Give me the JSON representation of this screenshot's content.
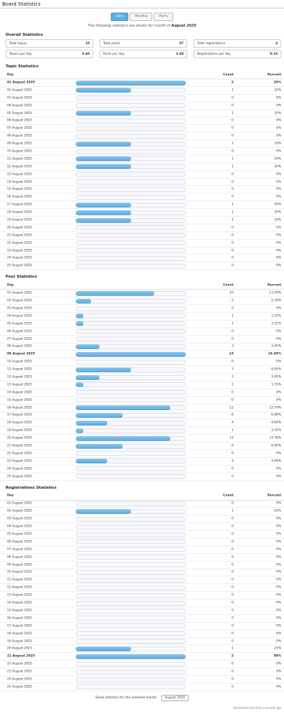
{
  "header": {
    "title": "Board Statistics"
  },
  "tabs": [
    "Daily",
    "Monthly",
    "Yearly"
  ],
  "intro": {
    "text": "The following statistics are shown for month of",
    "month": "August 2025"
  },
  "overall": {
    "title": "Overall Statistics",
    "items": [
      {
        "label": "Total topics",
        "value": 10
      },
      {
        "label": "Total posts",
        "value": 87
      },
      {
        "label": "Total registrations",
        "value": 4
      },
      {
        "label": "Topics per day",
        "value": "0.40"
      },
      {
        "label": "Posts per day",
        "value": "3.48"
      },
      {
        "label": "Registrations per day",
        "value": "0.16"
      }
    ]
  },
  "tables": [
    {
      "title": "Topic Statistics",
      "columns": [
        "Day",
        "Count",
        "Percent"
      ],
      "rows": [
        [
          "01 August 2025",
          2,
          "20%"
        ],
        [
          "02 August 2025",
          1,
          "10%"
        ],
        [
          "03 August 2025",
          0,
          "0%"
        ],
        [
          "04 August 2025",
          0,
          "0%"
        ],
        [
          "05 August 2025",
          1,
          "10%"
        ],
        [
          "06 August 2025",
          0,
          "0%"
        ],
        [
          "07 August 2025",
          0,
          "0%"
        ],
        [
          "08 August 2025",
          0,
          "0%"
        ],
        [
          "09 August 2025",
          1,
          "10%"
        ],
        [
          "10 August 2025",
          0,
          "0%"
        ],
        [
          "11 August 2025",
          1,
          "10%"
        ],
        [
          "12 August 2025",
          1,
          "10%"
        ],
        [
          "13 August 2025",
          0,
          "0%"
        ],
        [
          "14 August 2025",
          0,
          "0%"
        ],
        [
          "15 August 2025",
          0,
          "0%"
        ],
        [
          "16 August 2025",
          0,
          "0%"
        ],
        [
          "17 August 2025",
          1,
          "10%"
        ],
        [
          "18 August 2025",
          1,
          "10%"
        ],
        [
          "19 August 2025",
          1,
          "10%"
        ],
        [
          "20 August 2025",
          0,
          "0%"
        ],
        [
          "21 August 2025",
          0,
          "0%"
        ],
        [
          "22 August 2025",
          0,
          "0%"
        ],
        [
          "23 August 2025",
          0,
          "0%"
        ],
        [
          "24 August 2025",
          0,
          "0%"
        ],
        [
          "25 August 2025",
          0,
          "0%"
        ]
      ]
    },
    {
      "title": "Post Statistics",
      "columns": [
        "Day",
        "Count",
        "Percent"
      ],
      "rows": [
        [
          "01 August 2025",
          10,
          "11.49%"
        ],
        [
          "02 August 2025",
          2,
          "2.30%"
        ],
        [
          "03 August 2025",
          0,
          "0%"
        ],
        [
          "04 August 2025",
          1,
          "1.15%"
        ],
        [
          "05 August 2025",
          1,
          "1.15%"
        ],
        [
          "06 August 2025",
          0,
          "0%"
        ],
        [
          "07 August 2025",
          0,
          "0%"
        ],
        [
          "08 August 2025",
          3,
          "3.45%"
        ],
        [
          "09 August 2025",
          14,
          "16.09%"
        ],
        [
          "10 August 2025",
          0,
          "0%"
        ],
        [
          "11 August 2025",
          7,
          "8.05%"
        ],
        [
          "12 August 2025",
          3,
          "3.45%"
        ],
        [
          "13 August 2025",
          1,
          "1.15%"
        ],
        [
          "14 August 2025",
          0,
          "0%"
        ],
        [
          "15 August 2025",
          0,
          "0%"
        ],
        [
          "16 August 2025",
          12,
          "13.79%"
        ],
        [
          "17 August 2025",
          6,
          "6.90%"
        ],
        [
          "18 August 2025",
          4,
          "4.60%"
        ],
        [
          "19 August 2025",
          1,
          "1.15%"
        ],
        [
          "20 August 2025",
          12,
          "13.79%"
        ],
        [
          "21 August 2025",
          6,
          "6.90%"
        ],
        [
          "22 August 2025",
          0,
          "0%"
        ],
        [
          "23 August 2025",
          4,
          "4.60%"
        ],
        [
          "24 August 2025",
          0,
          "0%"
        ],
        [
          "25 August 2025",
          0,
          "0%"
        ]
      ]
    },
    {
      "title": "Registrations Statistics",
      "columns": [
        "Day",
        "Count",
        "Percent"
      ],
      "rows": [
        [
          "01 August 2025",
          0,
          "0%"
        ],
        [
          "02 August 2025",
          1,
          "25%"
        ],
        [
          "03 August 2025",
          0,
          "0%"
        ],
        [
          "04 August 2025",
          0,
          "0%"
        ],
        [
          "05 August 2025",
          0,
          "0%"
        ],
        [
          "06 August 2025",
          0,
          "0%"
        ],
        [
          "07 August 2025",
          0,
          "0%"
        ],
        [
          "08 August 2025",
          0,
          "0%"
        ],
        [
          "09 August 2025",
          0,
          "0%"
        ],
        [
          "10 August 2025",
          0,
          "0%"
        ],
        [
          "11 August 2025",
          0,
          "0%"
        ],
        [
          "12 August 2025",
          0,
          "0%"
        ],
        [
          "13 August 2025",
          0,
          "0%"
        ],
        [
          "14 August 2025",
          0,
          "0%"
        ],
        [
          "15 August 2025",
          0,
          "0%"
        ],
        [
          "16 August 2025",
          0,
          "0%"
        ],
        [
          "17 August 2025",
          0,
          "0%"
        ],
        [
          "18 August 2025",
          0,
          "0%"
        ],
        [
          "19 August 2025",
          0,
          "0%"
        ],
        [
          "20 August 2025",
          1,
          "25%"
        ],
        [
          "21 August 2025",
          2,
          "50%"
        ],
        [
          "22 August 2025",
          0,
          "0%"
        ],
        [
          "23 August 2025",
          0,
          "0%"
        ],
        [
          "24 August 2025",
          0,
          "0%"
        ],
        [
          "25 August 2025",
          0,
          "0%"
        ]
      ]
    }
  ],
  "footer": {
    "select_label": "Show statistics for the selected month:",
    "selected": "August 2025",
    "generated": "Generated less than a minute ago"
  }
}
